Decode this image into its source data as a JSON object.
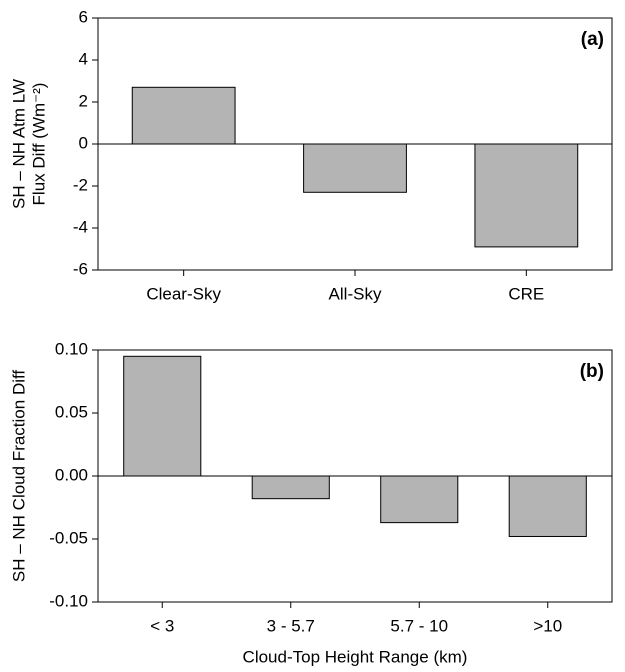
{
  "chart_data": [
    {
      "type": "bar",
      "label": "(a)",
      "ylabel": [
        "SH – NH Atm LW",
        "Flux Diff (Wm⁻²)"
      ],
      "categories": [
        "Clear-Sky",
        "All-Sky",
        "CRE"
      ],
      "values": [
        2.7,
        -2.3,
        -4.9
      ],
      "color": "#b4b4b4",
      "ylim": [
        -6,
        6
      ],
      "yticks": [
        -6,
        -4,
        -2,
        0,
        2,
        4,
        6
      ]
    },
    {
      "type": "bar",
      "label": "(b)",
      "ylabel": [
        "SH – NH Cloud Fraction Diff"
      ],
      "xlabel": "Cloud-Top Height Range (km)",
      "categories": [
        "< 3",
        "3 - 5.7",
        "5.7 - 10",
        ">10"
      ],
      "values": [
        0.095,
        -0.018,
        -0.037,
        -0.048
      ],
      "color": "#b4b4b4",
      "ylim": [
        -0.1,
        0.1
      ],
      "yticks": [
        {
          "value": -0.1,
          "label": "-0.10"
        },
        {
          "value": -0.05,
          "label": "-0.05"
        },
        {
          "value": 0,
          "label": "0.00"
        },
        {
          "value": 0.05,
          "label": "0.05"
        },
        {
          "value": 0.1,
          "label": "0.10"
        }
      ]
    }
  ]
}
